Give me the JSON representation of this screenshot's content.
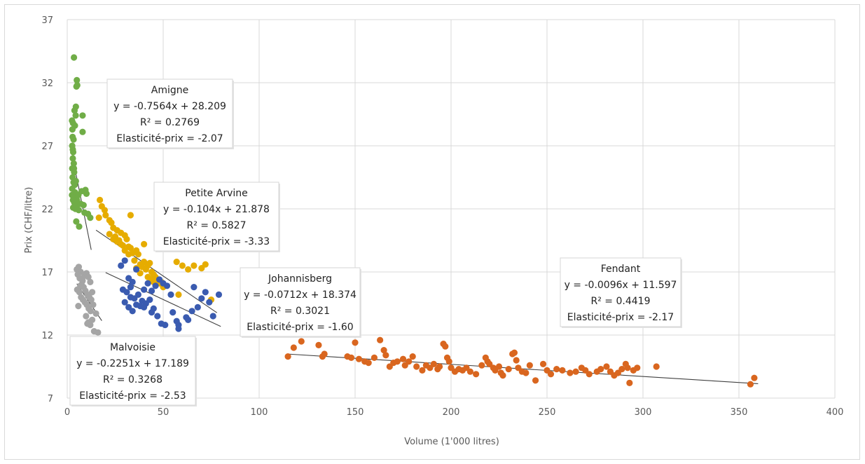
{
  "chart_data": {
    "type": "scatter",
    "xlabel": "Volume (1'000 litres)",
    "ylabel": "Prix (CHF/litre)",
    "xlim": [
      0,
      400
    ],
    "ylim": [
      7,
      37
    ],
    "x_ticks": [
      "0",
      "50",
      "100",
      "150",
      "200",
      "250",
      "300",
      "350",
      "400"
    ],
    "y_ticks": [
      "7",
      "12",
      "17",
      "22",
      "27",
      "32",
      "37"
    ],
    "grid": true,
    "colors": {
      "Amigne": "#70ad47",
      "Petite Arvine": "#e6ac00",
      "Johannisberg": "#3a5bb0",
      "Malvoisie": "#a5a5a5",
      "Fendant": "#d9661f",
      "trendline": "#404040",
      "grid": "#d9d9d9"
    },
    "series": [
      {
        "name": "Amigne",
        "trendline": {
          "slope": -0.7564,
          "intercept": 28.209,
          "x_range": [
            3,
            12.5
          ]
        },
        "annotation": [
          "Amigne",
          "y = -0.7564x + 28.209",
          "R² = 0.2769",
          "Elasticité-prix = -2.07"
        ],
        "points": [
          [
            3.5,
            34
          ],
          [
            5,
            32.2
          ],
          [
            5.2,
            31.8
          ],
          [
            4.8,
            31.7
          ],
          [
            4.5,
            30.1
          ],
          [
            3.8,
            29.8
          ],
          [
            4.4,
            29.4
          ],
          [
            8,
            29.4
          ],
          [
            2.5,
            29
          ],
          [
            3,
            28.8
          ],
          [
            4,
            28.6
          ],
          [
            2.7,
            28.3
          ],
          [
            8,
            28.1
          ],
          [
            2.8,
            27.7
          ],
          [
            3.3,
            27.5
          ],
          [
            2.6,
            27
          ],
          [
            3.1,
            26.5
          ],
          [
            2.9,
            26
          ],
          [
            3.4,
            25.6
          ],
          [
            2.6,
            25.2
          ],
          [
            3.6,
            24.9
          ],
          [
            2.8,
            24.5
          ],
          [
            3.3,
            24.1
          ],
          [
            3.9,
            23.9
          ],
          [
            2.6,
            23.6
          ],
          [
            4.1,
            23.3
          ],
          [
            3.2,
            23
          ],
          [
            4.6,
            22.8
          ],
          [
            3.7,
            22.5
          ],
          [
            5.2,
            22.3
          ],
          [
            3.1,
            22.1
          ],
          [
            4.3,
            22
          ],
          [
            6,
            21.9
          ],
          [
            7,
            22.4
          ],
          [
            8.5,
            22.3
          ],
          [
            9.5,
            23.5
          ],
          [
            10,
            23.2
          ],
          [
            9,
            21.7
          ],
          [
            10.8,
            21.6
          ],
          [
            12,
            21.3
          ],
          [
            4.7,
            21
          ],
          [
            6.2,
            20.6
          ],
          [
            5.1,
            22.7
          ],
          [
            5.8,
            23.1
          ],
          [
            7.5,
            23.4
          ],
          [
            3,
            22.7
          ],
          [
            2.5,
            23.1
          ],
          [
            4.5,
            24.2
          ],
          [
            3.5,
            25.2
          ],
          [
            2.9,
            26.7
          ]
        ]
      },
      {
        "name": "Petite Arvine",
        "trendline": {
          "slope": -0.104,
          "intercept": 21.878,
          "x_range": [
            15,
            78
          ]
        },
        "annotation": [
          "Petite Arvine",
          "y = -0.104x + 21.878",
          "R² = 0.5827",
          "Elasticité-prix = -3.33"
        ],
        "points": [
          [
            17,
            22.7
          ],
          [
            18,
            22.2
          ],
          [
            19.5,
            21.9
          ],
          [
            20,
            21.5
          ],
          [
            16.5,
            21.3
          ],
          [
            22,
            21.1
          ],
          [
            23,
            20.9
          ],
          [
            24,
            20.5
          ],
          [
            26,
            20.3
          ],
          [
            28,
            20.1
          ],
          [
            25,
            19.8
          ],
          [
            30,
            19.9
          ],
          [
            27,
            19.5
          ],
          [
            31,
            19.6
          ],
          [
            29,
            19.1
          ],
          [
            32,
            19
          ],
          [
            33,
            18.9
          ],
          [
            34,
            18.5
          ],
          [
            36,
            18.7
          ],
          [
            37,
            18.4
          ],
          [
            35,
            17.9
          ],
          [
            38,
            17.6
          ],
          [
            40,
            17.8
          ],
          [
            39,
            17.4
          ],
          [
            41,
            17.2
          ],
          [
            42,
            17.5
          ],
          [
            43,
            17.7
          ],
          [
            44,
            17
          ],
          [
            45,
            16.8
          ],
          [
            46,
            16.6
          ],
          [
            47,
            16.3
          ],
          [
            48,
            16.1
          ],
          [
            49,
            16.2
          ],
          [
            40,
            19.2
          ],
          [
            33,
            21.5
          ],
          [
            50,
            15.8
          ],
          [
            57,
            17.8
          ],
          [
            60,
            17.5
          ],
          [
            63,
            17.2
          ],
          [
            66,
            17.5
          ],
          [
            70,
            17.3
          ],
          [
            72,
            17.6
          ],
          [
            75,
            14.8
          ],
          [
            58,
            15.2
          ],
          [
            36,
            17.3
          ],
          [
            38,
            16.9
          ],
          [
            42,
            16.6
          ],
          [
            44,
            16.4
          ],
          [
            45,
            16.2
          ],
          [
            22,
            20
          ],
          [
            24,
            19.6
          ],
          [
            26,
            19.4
          ],
          [
            28,
            19.2
          ],
          [
            30,
            18.7
          ],
          [
            32,
            18.4
          ]
        ]
      },
      {
        "name": "Johannisberg",
        "trendline": {
          "slope": -0.0712,
          "intercept": 18.374,
          "x_range": [
            20,
            80
          ]
        },
        "annotation": [
          "Johannisberg",
          "y = -0.0712x + 18.374",
          "R² = 0.3021",
          "Elasticité-prix = -1.60"
        ],
        "points": [
          [
            28,
            17.5
          ],
          [
            30,
            17.9
          ],
          [
            32,
            16.5
          ],
          [
            34,
            16.2
          ],
          [
            36,
            17.2
          ],
          [
            29,
            15.6
          ],
          [
            31,
            15.4
          ],
          [
            33,
            15
          ],
          [
            35,
            14.9
          ],
          [
            37,
            15.2
          ],
          [
            39,
            14.7
          ],
          [
            41,
            14.5
          ],
          [
            43,
            14.8
          ],
          [
            45,
            14.1
          ],
          [
            30,
            14.6
          ],
          [
            32,
            14.2
          ],
          [
            34,
            13.9
          ],
          [
            36,
            14.4
          ],
          [
            38,
            14.3
          ],
          [
            40,
            15.6
          ],
          [
            42,
            16.1
          ],
          [
            44,
            15.5
          ],
          [
            46,
            15.9
          ],
          [
            48,
            16.4
          ],
          [
            50,
            16.1
          ],
          [
            52,
            15.9
          ],
          [
            54,
            15.2
          ],
          [
            47,
            13.5
          ],
          [
            49,
            12.9
          ],
          [
            51,
            12.8
          ],
          [
            55,
            13.8
          ],
          [
            57,
            13.1
          ],
          [
            58,
            12.5
          ],
          [
            62,
            13.4
          ],
          [
            65,
            13.9
          ],
          [
            68,
            14.2
          ],
          [
            70,
            14.9
          ],
          [
            74,
            14.6
          ],
          [
            79,
            15.2
          ],
          [
            66,
            15.8
          ],
          [
            72,
            15.4
          ],
          [
            76,
            13.5
          ],
          [
            33,
            15.8
          ],
          [
            40,
            14.2
          ],
          [
            44,
            13.8
          ],
          [
            58,
            12.8
          ],
          [
            63,
            13.2
          ]
        ]
      },
      {
        "name": "Malvoisie",
        "trendline": {
          "slope": -0.2251,
          "intercept": 17.189,
          "x_range": [
            5,
            18
          ]
        },
        "annotation": [
          "Malvoisie",
          "y = -0.2251x + 17.189",
          "R² = 0.3268",
          "Elasticité-prix = -2.53"
        ],
        "points": [
          [
            5,
            17.2
          ],
          [
            6,
            17.4
          ],
          [
            7,
            17
          ],
          [
            5.5,
            16.8
          ],
          [
            6.5,
            16.5
          ],
          [
            8,
            16.3
          ],
          [
            9,
            16.7
          ],
          [
            10,
            16.9
          ],
          [
            11,
            16.6
          ],
          [
            12,
            16.2
          ],
          [
            7.5,
            16
          ],
          [
            8.5,
            15.8
          ],
          [
            5.2,
            15.6
          ],
          [
            6.3,
            15.4
          ],
          [
            9.5,
            15.5
          ],
          [
            10.5,
            15.2
          ],
          [
            11.5,
            15
          ],
          [
            12.5,
            14.8
          ],
          [
            13.5,
            14.4
          ],
          [
            7.2,
            15
          ],
          [
            8.2,
            14.8
          ],
          [
            9.2,
            14.6
          ],
          [
            10.2,
            14.4
          ],
          [
            11.2,
            14.1
          ],
          [
            12.2,
            13.9
          ],
          [
            5.8,
            14.3
          ],
          [
            13,
            15.4
          ],
          [
            11,
            13
          ],
          [
            12,
            12.8
          ],
          [
            10.5,
            12.9
          ],
          [
            14,
            12.3
          ],
          [
            16,
            12.2
          ],
          [
            13,
            13.2
          ],
          [
            15,
            13.7
          ],
          [
            9.8,
            13.5
          ],
          [
            6.8,
            15.9
          ],
          [
            7.8,
            16.4
          ]
        ]
      },
      {
        "name": "Fendant",
        "trendline": {
          "slope": -0.0096,
          "intercept": 11.597,
          "x_range": [
            115,
            360
          ]
        },
        "annotation": [
          "Fendant",
          "y = -0.0096x + 11.597",
          "R² = 0.4419",
          "Elasticité-prix = -2.17"
        ],
        "points": [
          [
            115,
            10.3
          ],
          [
            118,
            11
          ],
          [
            122,
            11.5
          ],
          [
            131,
            11.2
          ],
          [
            133,
            10.3
          ],
          [
            134,
            10.5
          ],
          [
            146,
            10.3
          ],
          [
            148,
            10.2
          ],
          [
            150,
            11.4
          ],
          [
            152,
            10.1
          ],
          [
            155,
            9.9
          ],
          [
            157,
            9.8
          ],
          [
            160,
            10.2
          ],
          [
            163,
            11.6
          ],
          [
            165,
            10.8
          ],
          [
            166,
            10.4
          ],
          [
            168,
            9.5
          ],
          [
            170,
            9.8
          ],
          [
            172,
            9.9
          ],
          [
            175,
            10.1
          ],
          [
            176,
            9.6
          ],
          [
            178,
            9.9
          ],
          [
            180,
            10.3
          ],
          [
            182,
            9.5
          ],
          [
            185,
            9.2
          ],
          [
            187,
            9.6
          ],
          [
            189,
            9.4
          ],
          [
            191,
            9.7
          ],
          [
            193,
            9.3
          ],
          [
            194,
            9.5
          ],
          [
            196,
            11.3
          ],
          [
            197,
            11.1
          ],
          [
            198,
            10.2
          ],
          [
            199,
            9.9
          ],
          [
            200,
            9.4
          ],
          [
            202,
            9.1
          ],
          [
            204,
            9.3
          ],
          [
            206,
            9.2
          ],
          [
            208,
            9.4
          ],
          [
            210,
            9.1
          ],
          [
            213,
            8.9
          ],
          [
            216,
            9.6
          ],
          [
            218,
            10.2
          ],
          [
            219,
            9.9
          ],
          [
            220,
            9.7
          ],
          [
            222,
            9.4
          ],
          [
            223,
            9.2
          ],
          [
            225,
            9.5
          ],
          [
            226,
            9
          ],
          [
            227,
            8.8
          ],
          [
            230,
            9.3
          ],
          [
            232,
            10.5
          ],
          [
            233,
            10.6
          ],
          [
            234,
            10
          ],
          [
            235,
            9.4
          ],
          [
            237,
            9.1
          ],
          [
            239,
            9
          ],
          [
            241,
            9.6
          ],
          [
            244,
            8.4
          ],
          [
            248,
            9.7
          ],
          [
            250,
            9.2
          ],
          [
            252,
            8.9
          ],
          [
            255,
            9.3
          ],
          [
            258,
            9.2
          ],
          [
            262,
            9
          ],
          [
            265,
            9.1
          ],
          [
            268,
            9.4
          ],
          [
            270,
            9.2
          ],
          [
            272,
            8.9
          ],
          [
            276,
            9.1
          ],
          [
            278,
            9.3
          ],
          [
            281,
            9.5
          ],
          [
            283,
            9.1
          ],
          [
            285,
            8.8
          ],
          [
            287,
            9
          ],
          [
            289,
            9.3
          ],
          [
            291,
            9.7
          ],
          [
            292,
            9.4
          ],
          [
            293,
            8.2
          ],
          [
            295,
            9.2
          ],
          [
            297,
            9.4
          ],
          [
            307,
            9.5
          ],
          [
            356,
            8.1
          ],
          [
            358,
            8.6
          ]
        ]
      }
    ]
  }
}
